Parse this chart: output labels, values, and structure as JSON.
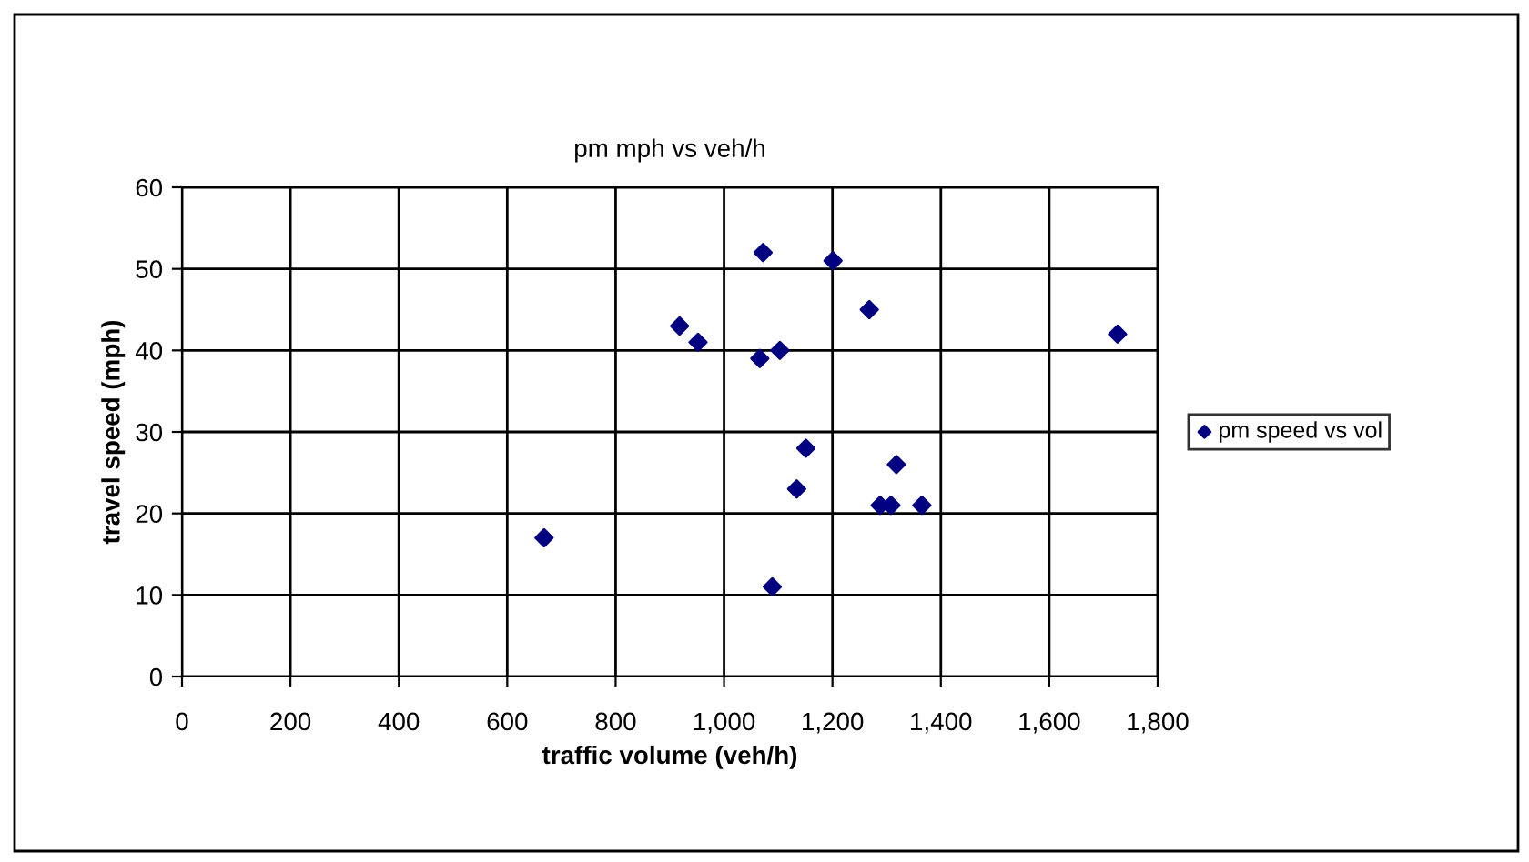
{
  "chart_data": {
    "type": "scatter",
    "title": "pm mph vs veh/h",
    "xlabel": "traffic volume (veh/h)",
    "ylabel": "travel speed (mph)",
    "series": [
      {
        "name": "pm speed vs vol",
        "color": "#000080",
        "x": [
          1072,
          1201,
          1268,
          918,
          952,
          1066,
          1103,
          1726,
          1151,
          1318,
          1134,
          1288,
          1308,
          1365,
          1089,
          668
        ],
        "values": [
          52,
          51,
          45,
          43,
          41,
          39,
          40,
          42,
          28,
          26,
          23,
          21,
          21,
          21,
          11,
          17
        ]
      }
    ],
    "xlim": [
      0,
      1800
    ],
    "xticks": [
      0,
      {
        "value": 200,
        "label": "200"
      },
      {
        "value": 400,
        "label": "400"
      },
      {
        "value": 600,
        "label": "600"
      },
      {
        "value": 800,
        "label": "800"
      },
      {
        "value": 1000,
        "label": "1,000"
      },
      {
        "value": 1200,
        "label": "1,200"
      },
      {
        "value": 1400,
        "label": "1,400"
      },
      {
        "value": 1600,
        "label": "1,600"
      },
      {
        "value": 1800,
        "label": "1,800"
      }
    ],
    "ylim": [
      0,
      60
    ],
    "yticks": [
      0,
      10,
      20,
      30,
      40,
      50,
      60
    ],
    "grid": true,
    "legend": "right",
    "marker": "diamond"
  }
}
